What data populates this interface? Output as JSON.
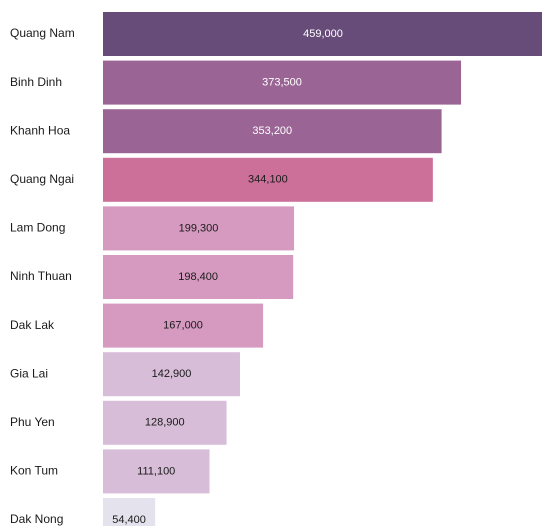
{
  "chart_data": {
    "type": "bar",
    "orientation": "horizontal",
    "categories": [
      "Quang Nam",
      "Binh Dinh",
      "Khanh Hoa",
      "Quang Ngai",
      "Lam Dong",
      "Ninh Thuan",
      "Dak Lak",
      "Gia Lai",
      "Phu Yen",
      "Kon Tum",
      "Dak Nong"
    ],
    "values": [
      459000,
      373500,
      353200,
      344100,
      199300,
      198400,
      167000,
      142900,
      128900,
      111100,
      54400
    ],
    "value_labels": [
      "459,000",
      "373,500",
      "353,200",
      "344,100",
      "199,300",
      "198,400",
      "167,000",
      "142,900",
      "128,900",
      "111,100",
      "54,400"
    ],
    "bar_colors": [
      "#674c7a",
      "#9a6595",
      "#9a6595",
      "#cc7099",
      "#d69ac0",
      "#d69ac0",
      "#d69ac0",
      "#d7bdd7",
      "#d7bdd7",
      "#d7bdd7",
      "#e3e2ed"
    ],
    "label_colors": [
      "#ffffff",
      "#ffffff",
      "#ffffff",
      "#1a1a1a",
      "#1a1a1a",
      "#1a1a1a",
      "#1a1a1a",
      "#1a1a1a",
      "#1a1a1a",
      "#1a1a1a",
      "#1a1a1a"
    ],
    "xlim": [
      0,
      459000
    ],
    "title": "",
    "xlabel": "",
    "ylabel": "",
    "grid": false,
    "legend": "none"
  }
}
